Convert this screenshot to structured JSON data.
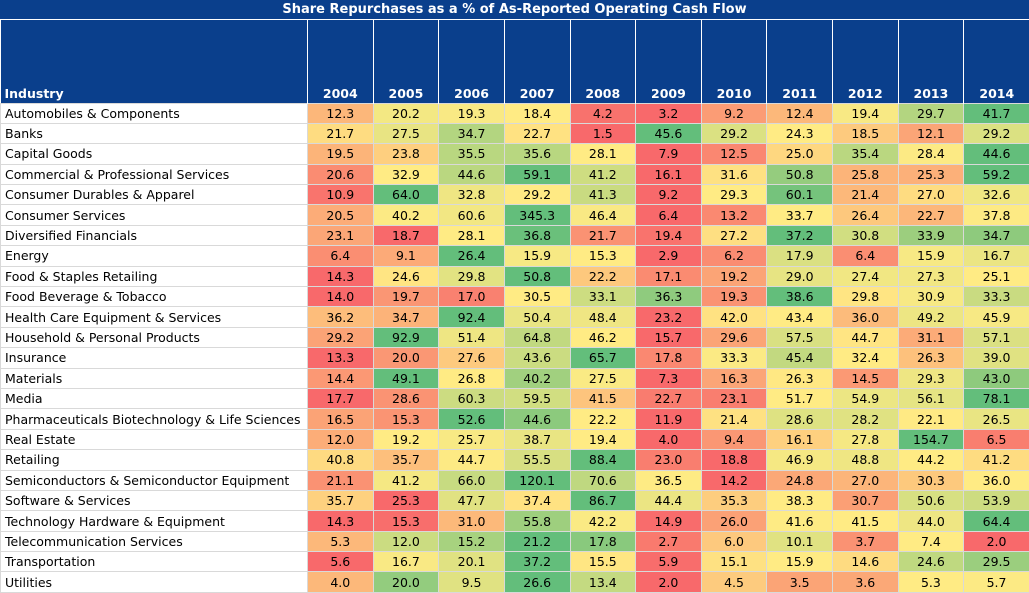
{
  "chart_data": {
    "type": "heatmap",
    "title": "Share Repurchases as a % of As-Reported Operating Cash Flow",
    "row_header": "Industry",
    "years": [
      "2004",
      "2005",
      "2006",
      "2007",
      "2008",
      "2009",
      "2010",
      "2011",
      "2012",
      "2013",
      "2014"
    ],
    "rows": [
      {
        "industry": "Automobiles & Components",
        "values": [
          12.3,
          20.2,
          19.3,
          18.4,
          4.2,
          3.2,
          9.2,
          12.4,
          19.4,
          29.7,
          41.7
        ]
      },
      {
        "industry": "Banks",
        "values": [
          21.7,
          27.5,
          34.7,
          22.7,
          1.5,
          45.6,
          29.2,
          24.3,
          18.5,
          12.1,
          29.2
        ]
      },
      {
        "industry": "Capital Goods",
        "values": [
          19.5,
          23.8,
          35.5,
          35.6,
          28.1,
          7.9,
          12.5,
          25.0,
          35.4,
          28.4,
          44.6
        ]
      },
      {
        "industry": "Commercial & Professional Services",
        "values": [
          20.6,
          32.9,
          44.6,
          59.1,
          41.2,
          16.1,
          31.6,
          50.8,
          25.8,
          25.3,
          59.2
        ]
      },
      {
        "industry": "Consumer Durables & Apparel",
        "values": [
          10.9,
          64.0,
          32.8,
          29.2,
          41.3,
          9.2,
          29.3,
          60.1,
          21.4,
          27.0,
          32.6
        ]
      },
      {
        "industry": "Consumer Services",
        "values": [
          20.5,
          40.2,
          60.6,
          345.3,
          46.4,
          6.4,
          13.2,
          33.7,
          26.4,
          22.7,
          37.8
        ]
      },
      {
        "industry": "Diversified Financials",
        "values": [
          23.1,
          18.7,
          28.1,
          36.8,
          21.7,
          19.4,
          27.2,
          37.2,
          30.8,
          33.9,
          34.7
        ]
      },
      {
        "industry": "Energy",
        "values": [
          6.4,
          9.1,
          26.4,
          15.9,
          15.3,
          2.9,
          6.2,
          17.9,
          6.4,
          15.9,
          16.7
        ]
      },
      {
        "industry": "Food & Staples Retailing",
        "values": [
          14.3,
          24.6,
          29.8,
          50.8,
          22.2,
          17.1,
          19.2,
          29.0,
          27.4,
          27.3,
          25.1
        ]
      },
      {
        "industry": "Food Beverage & Tobacco",
        "values": [
          14.0,
          19.7,
          17.0,
          30.5,
          33.1,
          36.3,
          19.3,
          38.6,
          29.8,
          30.9,
          33.3
        ]
      },
      {
        "industry": "Health Care Equipment & Services",
        "values": [
          36.2,
          34.7,
          92.4,
          50.4,
          48.4,
          23.2,
          42.0,
          43.4,
          36.0,
          49.2,
          45.9
        ]
      },
      {
        "industry": "Household & Personal Products",
        "values": [
          29.2,
          92.9,
          51.4,
          64.8,
          46.2,
          15.7,
          29.6,
          57.5,
          44.7,
          31.1,
          57.1
        ]
      },
      {
        "industry": "Insurance",
        "values": [
          13.3,
          20.0,
          27.6,
          43.6,
          65.7,
          17.8,
          33.3,
          45.4,
          32.4,
          26.3,
          39.0
        ]
      },
      {
        "industry": "Materials",
        "values": [
          14.4,
          49.1,
          26.8,
          40.2,
          27.5,
          7.3,
          16.3,
          26.3,
          14.5,
          29.3,
          43.0
        ]
      },
      {
        "industry": "Media",
        "values": [
          17.7,
          28.6,
          60.3,
          59.5,
          41.5,
          22.7,
          23.1,
          51.7,
          54.9,
          56.1,
          78.1
        ]
      },
      {
        "industry": "Pharmaceuticals Biotechnology & Life Sciences",
        "values": [
          16.5,
          15.3,
          52.6,
          44.6,
          22.2,
          11.9,
          21.4,
          28.6,
          28.2,
          22.1,
          26.5
        ]
      },
      {
        "industry": "Real Estate",
        "values": [
          12.0,
          19.2,
          25.7,
          38.7,
          19.4,
          4.0,
          9.4,
          16.1,
          27.8,
          154.7,
          6.5
        ]
      },
      {
        "industry": "Retailing",
        "values": [
          40.8,
          35.7,
          44.7,
          55.5,
          88.4,
          23.0,
          18.8,
          46.9,
          48.8,
          44.2,
          41.2
        ]
      },
      {
        "industry": "Semiconductors & Semiconductor Equipment",
        "values": [
          21.1,
          41.2,
          66.0,
          120.1,
          70.6,
          36.5,
          14.2,
          24.8,
          27.0,
          30.3,
          36.0
        ]
      },
      {
        "industry": "Software & Services",
        "values": [
          35.7,
          25.3,
          47.7,
          37.4,
          86.7,
          44.4,
          35.3,
          38.3,
          30.7,
          50.6,
          53.9
        ]
      },
      {
        "industry": "Technology Hardware & Equipment",
        "values": [
          14.3,
          15.3,
          31.0,
          55.8,
          42.2,
          14.9,
          26.0,
          41.6,
          41.5,
          44.0,
          64.4
        ]
      },
      {
        "industry": "Telecommunication Services",
        "values": [
          5.3,
          12.0,
          15.2,
          21.2,
          17.8,
          2.7,
          6.0,
          10.1,
          3.7,
          7.4,
          2.0
        ]
      },
      {
        "industry": "Transportation",
        "values": [
          5.6,
          16.7,
          20.1,
          37.2,
          15.5,
          5.9,
          15.1,
          15.9,
          14.6,
          24.6,
          29.5
        ]
      },
      {
        "industry": "Utilities",
        "values": [
          4.0,
          20.0,
          9.5,
          26.6,
          13.4,
          2.0,
          4.5,
          3.5,
          3.6,
          5.3,
          5.7
        ]
      }
    ],
    "color_scale": {
      "low": "#f8696b",
      "mid": "#ffeb84",
      "high": "#63be7b",
      "scope": "per-row"
    }
  }
}
